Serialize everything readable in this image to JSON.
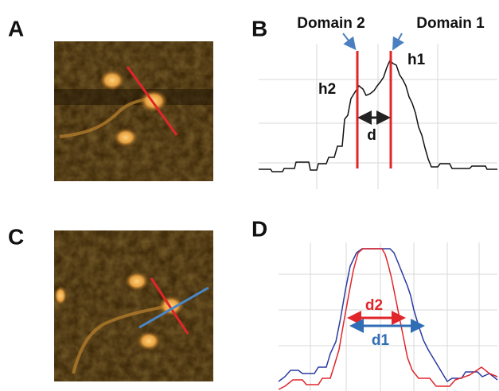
{
  "panels": {
    "a": {
      "label": "A"
    },
    "b": {
      "label": "B",
      "annotations": [
        "Domain 2",
        "Domain 1",
        "h1",
        "h2",
        "d"
      ]
    },
    "c": {
      "label": "C"
    },
    "d": {
      "label": "D",
      "annotations": [
        "d2",
        "d1"
      ]
    }
  }
}
